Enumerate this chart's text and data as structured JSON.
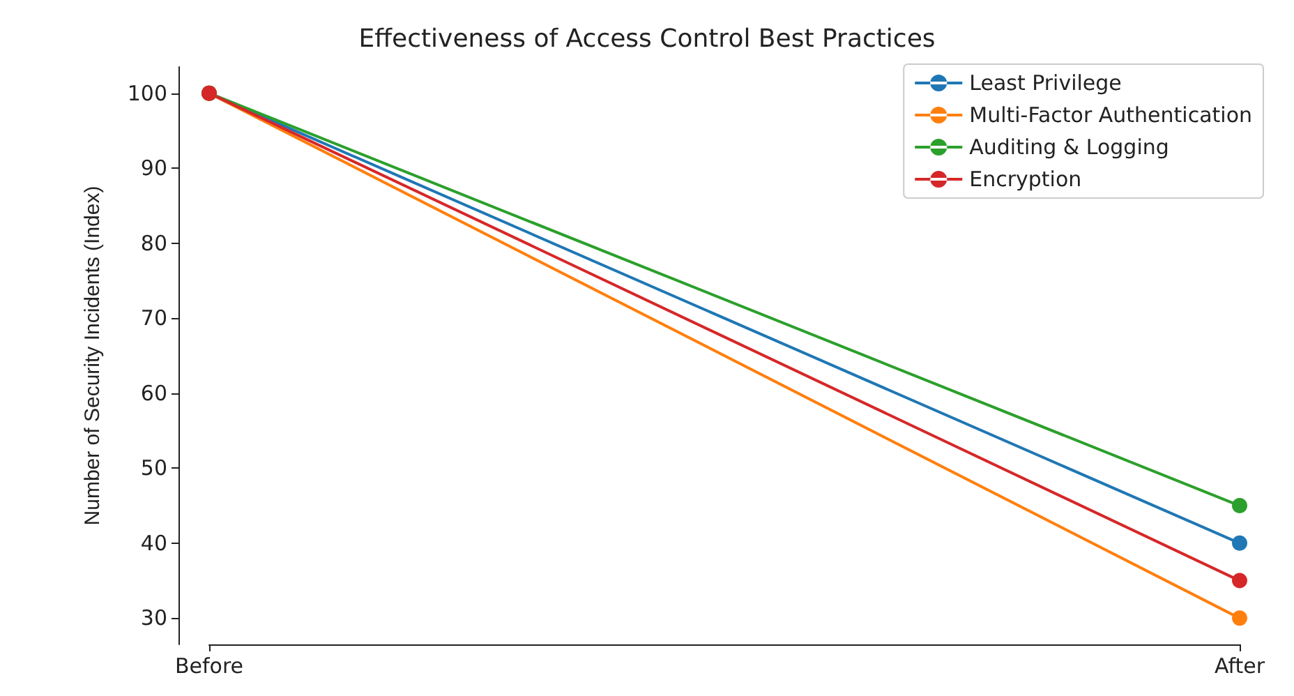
{
  "chart_data": {
    "type": "line",
    "title": "Effectiveness of Access Control Best Practices",
    "ylabel": "Number of Security Incidents (Index)",
    "categories": [
      "Before",
      "After"
    ],
    "series": [
      {
        "name": "Least Privilege",
        "color": "#1f77b4",
        "values": [
          100,
          40
        ]
      },
      {
        "name": "Multi-Factor Authentication",
        "color": "#ff7f0e",
        "values": [
          100,
          30
        ]
      },
      {
        "name": "Auditing & Logging",
        "color": "#2ca02c",
        "values": [
          100,
          45
        ]
      },
      {
        "name": "Encryption",
        "color": "#d62728",
        "values": [
          100,
          35
        ]
      }
    ],
    "ylim": [
      26.5,
      103.5
    ],
    "yticks": [
      30,
      40,
      50,
      60,
      70,
      80,
      90,
      100
    ],
    "legend": "top right",
    "marker": "circle",
    "grid": false
  }
}
